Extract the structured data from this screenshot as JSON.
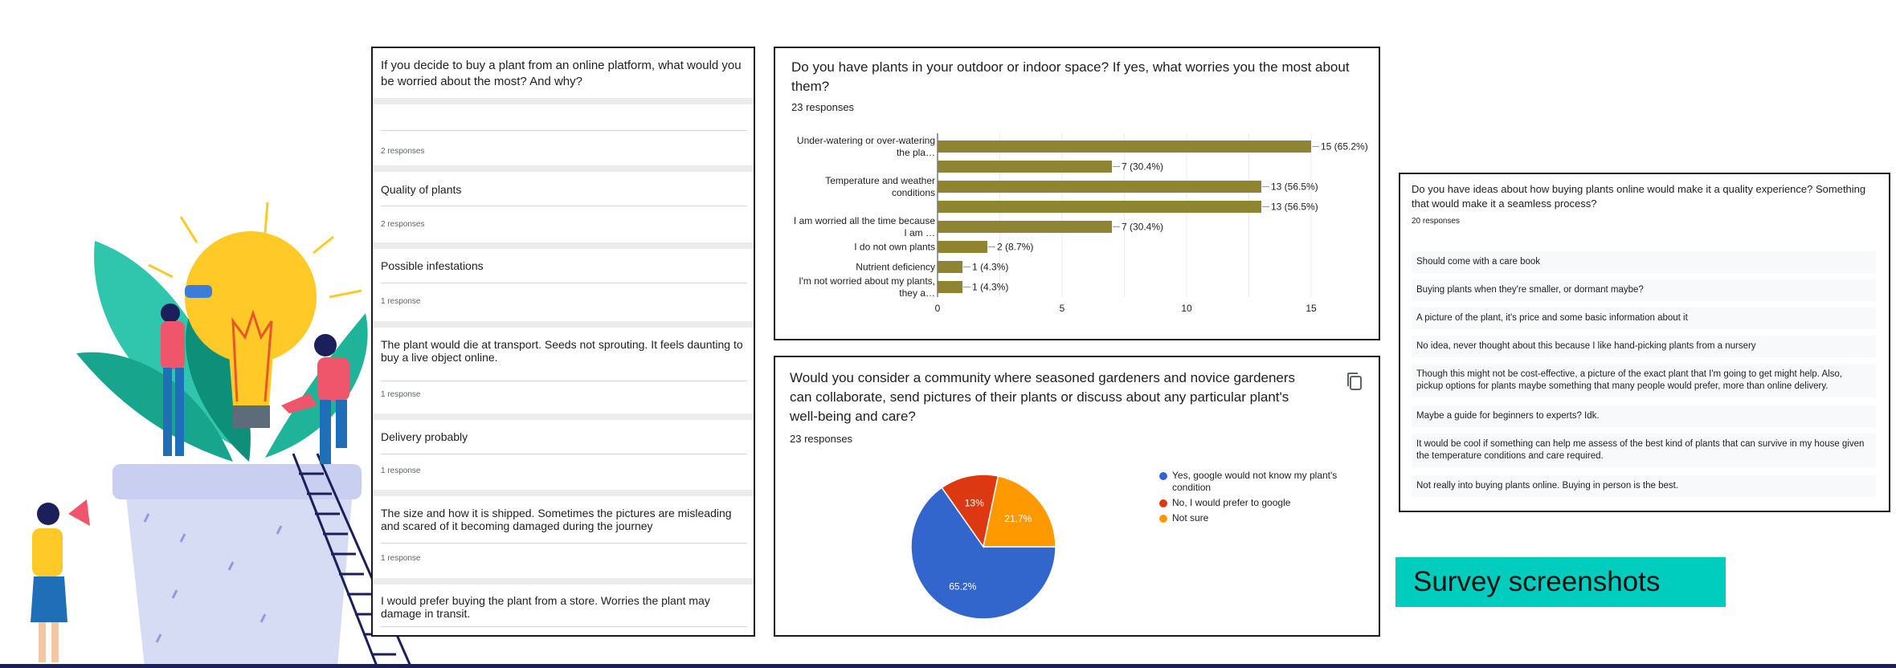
{
  "left_panel": {
    "question": "If you decide to buy a plant from an online platform, what would you be worried about the most? And why?",
    "items": [
      {
        "text": "",
        "responses": "2 responses"
      },
      {
        "text": "Quality of plants",
        "responses": "2 responses"
      },
      {
        "text": "Possible infestations",
        "responses": "1 response"
      },
      {
        "text": "The plant would die at transport. Seeds not sprouting. It feels daunting to buy a live object online.",
        "responses": "1 response"
      },
      {
        "text": "Delivery probably",
        "responses": "1 response"
      },
      {
        "text": "The size and how it is shipped. Sometimes the pictures are misleading and scared of it becoming damaged during the journey",
        "responses": "1 response"
      },
      {
        "text": "I would prefer buying the plant from a store. Worries the plant may damage in transit.",
        "responses": ""
      }
    ]
  },
  "bar_panel": {
    "question": "Do you have plants in your outdoor or indoor space? If yes, what worries you the most about them?",
    "responses": "23 responses"
  },
  "pie_panel": {
    "question": "Would you consider a community where seasoned gardeners and novice gardeners can collaborate, send pictures of their plants or discuss about any particular plant's well-being and care?",
    "responses": "23 responses",
    "copy_icon": "copy-icon"
  },
  "right_panel": {
    "question": "Do you have ideas about how buying plants online would make it a quality experience? Something that would make it a seamless process?",
    "responses": "20 responses",
    "answers": [
      "Should come with a care book",
      "Buying plants when they're smaller, or dormant maybe?",
      "A picture of the plant, it's price and some basic information about it",
      "No idea, never thought about this because I like hand-picking plants from a nursery",
      "Though this might not be cost-effective, a picture of the exact plant that I'm going to get might help. Also, pickup options for plants maybe something that many people would prefer, more than online delivery.",
      "Maybe a guide for beginners to experts? Idk.",
      "It would be cool if something can help me assess of the best kind of plants that can survive in my house given the temperature conditions and care required.",
      "Not really into buying plants online. Buying in person is the best."
    ]
  },
  "title_tag": "Survey screenshots",
  "colors": {
    "bar": "#8f8431",
    "pie_blue": "#3366cc",
    "pie_red": "#dc3912",
    "pie_orange": "#ff9900",
    "teal": "#00cdbe",
    "navy": "#1b1f5a"
  },
  "chart_data": [
    {
      "type": "bar",
      "orientation": "horizontal",
      "categories": [
        [
          "Under-watering or over-watering",
          "the pla…"
        ],
        [
          ""
        ],
        [
          "Temperature and weather",
          "conditions"
        ],
        [
          ""
        ],
        [
          "I am worried all the time because",
          "I am …"
        ],
        [
          "I do not own plants"
        ],
        [
          "Nutrient deficiency"
        ],
        [
          "I'm not worried about my plants,",
          "they a…"
        ]
      ],
      "values": [
        15,
        7,
        13,
        13,
        7,
        2,
        1,
        1
      ],
      "data_labels": [
        "15 (65.2%)",
        "7 (30.4%)",
        "13 (56.5%)",
        "13 (56.5%)",
        "7 (30.4%)",
        "2 (8.7%)",
        "1 (4.3%)",
        "1 (4.3%)"
      ],
      "xlim": [
        0,
        15
      ],
      "xticks": [
        "0",
        "5",
        "10",
        "15"
      ],
      "grid": true
    },
    {
      "type": "pie",
      "labels": [
        "Yes, google would not know my plant's condition",
        "No, I would prefer to google",
        "Not sure"
      ],
      "values": [
        65.2,
        13,
        21.7
      ],
      "slice_labels": [
        "65.2%",
        "13%",
        "21.7%"
      ],
      "colors": [
        "#3366cc",
        "#dc3912",
        "#ff9900"
      ],
      "legend": "right"
    }
  ]
}
